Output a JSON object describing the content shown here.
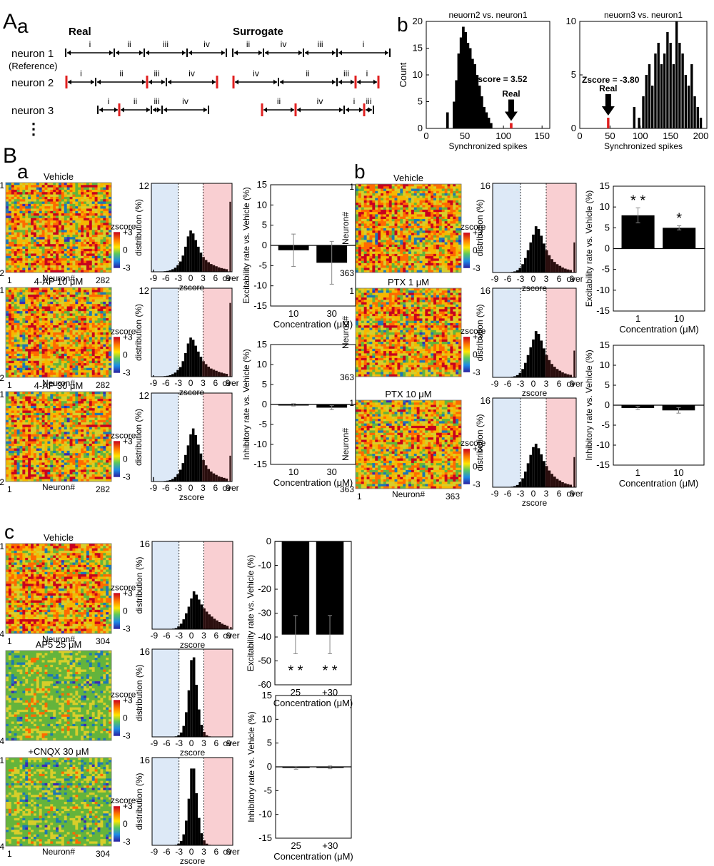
{
  "panel_labels": {
    "A": "A",
    "A_a": "a",
    "A_b": "b",
    "B": "B",
    "B_a": "a",
    "B_b": "b",
    "B_c": "c"
  },
  "schematic": {
    "real_title": "Real",
    "surrogate_title": "Surrogate",
    "rows": [
      {
        "label": "neuron 1",
        "sublabel": "(Reference)",
        "real": {
          "bounds": [
            92,
            160,
            202,
            262,
            317
          ],
          "labels": [
            "i",
            "ii",
            "iii",
            "iv"
          ],
          "spikes": []
        },
        "surrogate": {
          "bounds": [
            326,
            369,
            425,
            472,
            546
          ],
          "labels": [
            "ii",
            "iv",
            "iii",
            "i"
          ],
          "spikes": []
        }
      },
      {
        "label": "neuron 2",
        "sublabel": "",
        "real": {
          "bounds": [
            93,
            134,
            206,
            233,
            304
          ],
          "labels": [
            "i",
            "ii",
            "iii",
            "iv"
          ],
          "spikes": [
            93,
            206,
            304
          ]
        },
        "surrogate": {
          "bounds": [
            327,
            390,
            472,
            498,
            530
          ],
          "labels": [
            "iv",
            "ii",
            "iii",
            "i"
          ],
          "spikes": [
            327,
            498,
            530
          ]
        }
      },
      {
        "label": "neuron 3",
        "sublabel": "",
        "real": {
          "bounds": [
            137,
            167,
            212,
            227,
            292
          ],
          "labels": [
            "i",
            "ii",
            "iii",
            "iv"
          ],
          "spikes": [
            167
          ]
        },
        "surrogate": {
          "bounds": [
            367,
            414,
            482,
            510,
            523
          ],
          "labels": [
            "ii",
            "iv",
            "i",
            "iii"
          ],
          "spikes": [
            367,
            414,
            510
          ]
        }
      }
    ],
    "ellipsis": "⋮"
  },
  "chart_data": [
    {
      "id": "Ab1",
      "type": "bar",
      "title": "neuorn2 vs. neuron1",
      "xlabel": "Synchronized spikes",
      "ylabel": "Count",
      "xlim": [
        0,
        160
      ],
      "ylim": [
        0,
        20
      ],
      "xticks": [
        0,
        50,
        100,
        150
      ],
      "yticks": [
        0,
        5,
        10,
        15,
        20
      ],
      "bar_width": 3.4,
      "x": [
        27.5,
        36,
        39,
        42,
        45,
        48,
        51,
        54,
        57,
        60,
        63,
        66,
        69,
        72,
        75,
        78,
        81,
        84
      ],
      "values": [
        3,
        5,
        9,
        14,
        17,
        19,
        18,
        16,
        15,
        13,
        12,
        10,
        8,
        6,
        4,
        3,
        2,
        1
      ],
      "real": {
        "x": 110,
        "value": 1
      },
      "annotation": "Zscore = 3.52",
      "real_label": "Real"
    },
    {
      "id": "Ab2",
      "type": "bar",
      "title": "neuorn3 vs. neuron1",
      "xlabel": "Synchronized spikes",
      "ylabel": "",
      "xlim": [
        0,
        210
      ],
      "ylim": [
        0,
        10
      ],
      "xticks": [
        0,
        50,
        100,
        150,
        200
      ],
      "yticks": [
        0,
        5,
        10
      ],
      "bar_width": 4,
      "x": [
        90,
        98,
        105,
        110,
        115,
        120,
        125,
        130,
        135,
        140,
        145,
        150,
        155,
        160,
        165,
        170,
        175,
        180,
        185,
        190,
        195,
        200
      ],
      "values": [
        2,
        1,
        3,
        5,
        6,
        4,
        7,
        8,
        6,
        7,
        9,
        8,
        6,
        10,
        8,
        7,
        5,
        4,
        6,
        3,
        2,
        1
      ],
      "real": {
        "x": 47,
        "value": 1
      },
      "annotation": "Zscore = -3.80",
      "real_label": "Real"
    }
  ],
  "heatmaps": [
    {
      "title": "Vehicle",
      "n": "282",
      "ylabel": "Neuron#",
      "xlabel": "Neuron#",
      "one": "1",
      "cb_title": "zscore",
      "cb_ticks": [
        "+3",
        "0",
        "-3"
      ],
      "palette": [
        "#c8001e",
        "#ff6a00",
        "#f5b800",
        "#d8ce2a",
        "#64b43c",
        "#1e78b4",
        "#3c2ab4"
      ],
      "style": "warm"
    },
    {
      "title": "4-AP 10 μM",
      "n": "282",
      "ylabel": "Neuron#",
      "xlabel": "Neuron#",
      "one": "1",
      "cb_title": "zscore",
      "cb_ticks": [
        "+3",
        "0",
        "-3"
      ],
      "palette": [
        "#c8001e",
        "#ff6a00",
        "#f5b800",
        "#d8ce2a",
        "#64b43c",
        "#1e78b4",
        "#3c2ab4"
      ],
      "style": "warm"
    },
    {
      "title": "4-AP 30 μM",
      "n": "282",
      "ylabel": "Neuron#",
      "xlabel": "Neuron#",
      "one": "1",
      "cb_title": "zscore",
      "cb_ticks": [
        "+3",
        "0",
        "-3"
      ],
      "palette": [
        "#c8001e",
        "#ff6a00",
        "#f5b800",
        "#d8ce2a",
        "#64b43c",
        "#1e78b4",
        "#3c2ab4"
      ],
      "style": "warm"
    },
    {
      "title": "Vehicle",
      "n": "363",
      "ylabel": "Neuron#",
      "xlabel": "",
      "one": "1",
      "cb_title": "zscore",
      "cb_ticks": [
        "+3",
        "0",
        "-3"
      ],
      "palette": [
        "#c8001e",
        "#ff6a00",
        "#f5b800",
        "#d8ce2a",
        "#64b43c",
        "#1e78b4",
        "#3c2ab4"
      ],
      "style": "warm"
    },
    {
      "title": "PTX 1 μM",
      "n": "363",
      "ylabel": "Neuron#",
      "xlabel": "",
      "one": "1",
      "cb_title": "zscore",
      "cb_ticks": [
        "+3",
        "0",
        "-3"
      ],
      "palette": [
        "#c8001e",
        "#ff6a00",
        "#f5b800",
        "#d8ce2a",
        "#64b43c",
        "#1e78b4",
        "#3c2ab4"
      ],
      "style": "warm"
    },
    {
      "title": "PTX 10 μM",
      "n": "363",
      "ylabel": "Neuron#",
      "xlabel": "Neuron#",
      "one": "1",
      "cb_title": "zscore",
      "cb_ticks": [
        "+3",
        "0",
        "-3"
      ],
      "palette": [
        "#c8001e",
        "#ff6a00",
        "#f5b800",
        "#d8ce2a",
        "#64b43c",
        "#1e78b4",
        "#3c2ab4"
      ],
      "style": "warm"
    },
    {
      "title": "Vehicle",
      "n": "304",
      "ylabel": "Neuron#",
      "xlabel": "Neuron#",
      "one": "1",
      "cb_title": "zscore",
      "cb_ticks": [
        "+3",
        "0",
        "-3"
      ],
      "palette": [
        "#c8001e",
        "#ff6a00",
        "#f5b800",
        "#d8ce2a",
        "#64b43c",
        "#1e78b4",
        "#3c2ab4"
      ],
      "style": "warm"
    },
    {
      "title": "AP5 25 μM",
      "n": "304",
      "ylabel": "Neuron#",
      "xlabel": "",
      "one": "",
      "cb_title": "zscore",
      "cb_ticks": [
        "+3",
        "0",
        "-3"
      ],
      "palette": [
        "#c8001e",
        "#ff6a00",
        "#f5b800",
        "#d8ce2a",
        "#64b43c",
        "#1e78b4",
        "#3c2ab4"
      ],
      "style": "cool"
    },
    {
      "title": "+CNQX 30 μM",
      "n": "304",
      "ylabel": "Neuron#",
      "xlabel": "Neuron#",
      "one": "1",
      "cb_title": "zscore",
      "cb_ticks": [
        "+3",
        "0",
        "-3"
      ],
      "palette": [
        "#c8001e",
        "#ff6a00",
        "#f5b800",
        "#d8ce2a",
        "#64b43c",
        "#1e78b4",
        "#3c2ab4"
      ],
      "style": "cool"
    }
  ],
  "histograms": [
    {
      "ymax": "12",
      "ylabel": "distribution (%)",
      "xlabel": "zscore",
      "xticks": [
        "-9",
        "-6",
        "-3",
        "0",
        "3",
        "6",
        "9",
        "over"
      ],
      "values": [
        0.3,
        0,
        0.02,
        0.03,
        0.05,
        0.08,
        0.12,
        0.2,
        0.35,
        0.55,
        0.9,
        1.4,
        2.2,
        3.4,
        4.8,
        5.6,
        5.2,
        4.3,
        3.4,
        2.6,
        2.0,
        1.6,
        1.3,
        1.05,
        0.9,
        0.75,
        0.6,
        0.5,
        0.42,
        0.35,
        9.5
      ]
    },
    {
      "ymax": "12",
      "ylabel": "distribution (%)",
      "xlabel": "zscore",
      "xticks": [
        "-9",
        "-6",
        "-3",
        "0",
        "3",
        "6",
        "9",
        "over"
      ],
      "values": [
        0.2,
        0,
        0.02,
        0.03,
        0.05,
        0.08,
        0.12,
        0.2,
        0.35,
        0.55,
        0.9,
        1.3,
        2.1,
        3.2,
        4.5,
        5.3,
        5.0,
        4.2,
        3.4,
        2.7,
        2.1,
        1.7,
        1.35,
        1.1,
        0.95,
        0.8,
        0.65,
        0.55,
        0.45,
        0.38,
        10.0
      ]
    },
    {
      "ymax": "12",
      "ylabel": "distribution (%)",
      "xlabel": "zscore",
      "xticks": [
        "-9",
        "-6",
        "-3",
        "0",
        "3",
        "6",
        "9",
        "over"
      ],
      "values": [
        0.6,
        0,
        0.02,
        0.03,
        0.05,
        0.08,
        0.12,
        0.2,
        0.35,
        0.6,
        1.0,
        1.6,
        2.5,
        3.6,
        4.9,
        6.4,
        7.2,
        6.3,
        5.0,
        3.8,
        2.9,
        2.2,
        1.7,
        1.35,
        1.1,
        0.9,
        0.7,
        0.6,
        0.5,
        0.4,
        3.5
      ]
    },
    {
      "ymax": "16",
      "ylabel": "distribution (%)",
      "xlabel": "zscore",
      "xticks": [
        "-9",
        "-6",
        "-3",
        "0",
        "3",
        "6",
        "9",
        "over"
      ],
      "values": [
        0,
        0,
        0,
        0,
        0,
        0,
        0,
        0.1,
        0.2,
        0.4,
        0.8,
        1.5,
        2.6,
        4.0,
        5.4,
        6.8,
        8.3,
        7.8,
        6.6,
        5.2,
        4.0,
        3.1,
        2.4,
        1.9,
        1.5,
        1.2,
        0.9,
        0.7,
        0.55,
        0.45,
        5.4
      ]
    },
    {
      "ymax": "16",
      "ylabel": "distribution (%)",
      "xlabel": "zscore",
      "xticks": [
        "-9",
        "-6",
        "-3",
        "0",
        "3",
        "6",
        "9",
        "over"
      ],
      "values": [
        0,
        0,
        0,
        0,
        0,
        0,
        0,
        0.1,
        0.2,
        0.4,
        0.8,
        1.5,
        2.6,
        4.0,
        5.4,
        6.8,
        8.3,
        7.8,
        6.6,
        5.2,
        4.0,
        3.1,
        2.4,
        1.9,
        1.5,
        1.2,
        0.9,
        0.7,
        0.55,
        0.45,
        4.8
      ]
    },
    {
      "ymax": "16",
      "ylabel": "distribution (%)",
      "xlabel": "zscore",
      "xticks": [
        "-9",
        "-6",
        "-3",
        "0",
        "3",
        "6",
        "9",
        "over"
      ],
      "values": [
        0,
        0,
        0,
        0,
        0,
        0,
        0,
        0.1,
        0.2,
        0.4,
        0.9,
        1.6,
        2.8,
        4.3,
        5.8,
        7.2,
        7.8,
        7.0,
        5.9,
        4.7,
        3.8,
        3.0,
        2.4,
        1.9,
        1.5,
        1.2,
        0.9,
        0.7,
        0.55,
        0.45,
        5.4
      ]
    },
    {
      "ymax": "16",
      "ylabel": "distribution (%)",
      "xlabel": "zscore",
      "xticks": [
        "-9",
        "-6",
        "-3",
        "0",
        "3",
        "6",
        "9",
        "over"
      ],
      "values": [
        0,
        0,
        0,
        0,
        0,
        0,
        0,
        0.05,
        0.1,
        0.2,
        0.5,
        1.0,
        1.8,
        2.9,
        4.1,
        5.6,
        6.9,
        6.3,
        5.4,
        4.5,
        3.8,
        3.2,
        2.7,
        2.3,
        1.9,
        1.6,
        1.3,
        1.0,
        0.8,
        0.6,
        0.4
      ]
    },
    {
      "ymax": "16",
      "ylabel": "distribution (%)",
      "xlabel": "zscore",
      "xticks": [
        "-9",
        "-6",
        "-3",
        "0",
        "3",
        "6",
        "9",
        "over"
      ],
      "values": [
        0,
        0,
        0,
        0,
        0,
        0,
        0,
        0,
        0,
        0.1,
        0.3,
        0.8,
        2.0,
        4.5,
        8.5,
        14.0,
        14.5,
        9.5,
        5.0,
        2.2,
        0.9,
        0.3,
        0.1,
        0,
        0,
        0,
        0,
        0,
        0,
        0,
        0
      ]
    },
    {
      "ymax": "16",
      "ylabel": "distribution (%)",
      "xlabel": "zscore",
      "xticks": [
        "-9",
        "-6",
        "-3",
        "0",
        "3",
        "6",
        "9",
        "over"
      ],
      "values": [
        0,
        0,
        0,
        0,
        0,
        0,
        0,
        0,
        0,
        0.1,
        0.3,
        0.8,
        2.0,
        4.5,
        8.5,
        14.0,
        14.0,
        9.5,
        5.0,
        2.2,
        0.9,
        0.3,
        0.1,
        0,
        0,
        0,
        0,
        0,
        0,
        0,
        0
      ]
    }
  ],
  "ratecharts": [
    {
      "ylabel": "Excitability rate vs. Vehicle (%)",
      "xlabel": "Concentration (μM)",
      "ylim": [
        -15,
        15
      ],
      "yticks": [
        "15",
        "10",
        "5",
        "0",
        "-5",
        "-10",
        "-15"
      ],
      "categories": [
        "10",
        "30"
      ],
      "values": [
        -1.2,
        -4.3
      ],
      "errors": [
        4.0,
        5.3
      ],
      "stars": [
        "",
        ""
      ]
    },
    {
      "ylabel": "Inhibitory rate vs. Vehicle (%)",
      "xlabel": "Concentration (μM)",
      "ylim": [
        -15,
        15
      ],
      "yticks": [
        "15",
        "10",
        "5",
        "0",
        "-5",
        "-10",
        "-15"
      ],
      "categories": [
        "10",
        "30"
      ],
      "values": [
        -0.1,
        -0.8
      ],
      "errors": [
        0.3,
        0.5
      ],
      "stars": [
        "",
        ""
      ]
    },
    {
      "ylabel": "Excitability rate vs. Vehicle (%)",
      "xlabel": "Concentration (μM)",
      "ylim": [
        -15,
        15
      ],
      "yticks": [
        "15",
        "10",
        "5",
        "0",
        "-5",
        "-10",
        "-15"
      ],
      "categories": [
        "1",
        "10"
      ],
      "values": [
        8.0,
        5.0
      ],
      "errors": [
        1.8,
        0.5
      ],
      "stars": [
        "* *",
        "*"
      ]
    },
    {
      "ylabel": "Inhibitory rate vs. Vehicle (%)",
      "xlabel": "Concentration (μM)",
      "ylim": [
        -15,
        15
      ],
      "yticks": [
        "15",
        "10",
        "5",
        "0",
        "-5",
        "-10",
        "-15"
      ],
      "categories": [
        "1",
        "10"
      ],
      "values": [
        -0.7,
        -1.3
      ],
      "errors": [
        0.4,
        0.7
      ],
      "stars": [
        "",
        ""
      ]
    },
    {
      "ylabel": "Excitability rate vs. Vehicle (%)",
      "xlabel": "Concentration (μM)",
      "ylim": [
        -60,
        0
      ],
      "yticks": [
        "0",
        "-10",
        "-20",
        "-30",
        "-40",
        "-50",
        "-60"
      ],
      "categories": [
        "25",
        "+30"
      ],
      "values": [
        -39,
        -39
      ],
      "errors": [
        8,
        8
      ],
      "stars": [
        "* *",
        "* *"
      ],
      "star_pos": "below"
    },
    {
      "ylabel": "Inhibitory rate vs. Vehicle (%)",
      "xlabel": "Concentration (μM)",
      "ylim": [
        -15,
        15
      ],
      "yticks": [
        "15",
        "10",
        "5",
        "0",
        "-5",
        "-10",
        "-15"
      ],
      "categories": [
        "25",
        "+30"
      ],
      "values": [
        -0.2,
        -0.1
      ],
      "errors": [
        0.3,
        0.3
      ],
      "stars": [
        "",
        ""
      ]
    }
  ]
}
